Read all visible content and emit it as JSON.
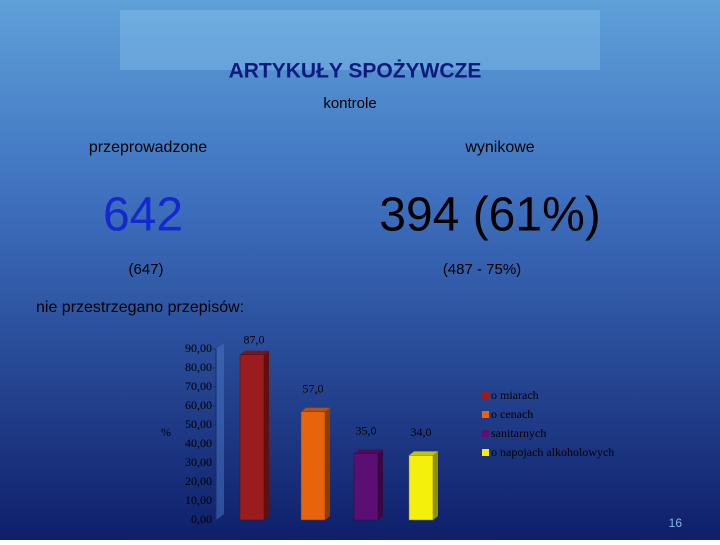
{
  "slide": {
    "title": "ARTYKUŁY SPOŻYWCZE",
    "subtitle": "kontrole",
    "left_label": "przeprowadzone",
    "right_label": "wynikowe",
    "left_value": "642",
    "right_value": "394 (61%)",
    "left_note": "(647)",
    "right_note": "(487 - 75%)",
    "chart_heading": "nie przestrzegano przepisów:",
    "page_number": "16"
  },
  "chart_data": {
    "type": "bar",
    "y_label": "%",
    "categories": [
      null
    ],
    "series": [
      {
        "name": "o miarach",
        "color": "#9b1c1c",
        "values": [
          87.0
        ],
        "value_labels": [
          "87,0"
        ]
      },
      {
        "name": "o cenach",
        "color": "#e8640c",
        "values": [
          57.0
        ],
        "value_labels": [
          "57,0"
        ]
      },
      {
        "name": "sanitarnych",
        "color": "#5c0f72",
        "values": [
          35.0
        ],
        "value_labels": [
          "35,0"
        ]
      },
      {
        "name": "o napojach alkoholowych",
        "color": "#f4f00c",
        "values": [
          34.0
        ],
        "value_labels": [
          "34,0"
        ]
      }
    ],
    "ylim": [
      0,
      90
    ],
    "yticks": [
      {
        "value": 0,
        "label": "0,00"
      },
      {
        "value": 10,
        "label": "10,00"
      },
      {
        "value": 20,
        "label": "20,00"
      },
      {
        "value": 30,
        "label": "30,00"
      },
      {
        "value": 40,
        "label": "40,00"
      },
      {
        "value": 50,
        "label": "50,00"
      },
      {
        "value": 60,
        "label": "60,00"
      },
      {
        "value": 70,
        "label": "70,00"
      },
      {
        "value": 80,
        "label": "80,00"
      },
      {
        "value": 90,
        "label": "90,00"
      }
    ],
    "grid": false,
    "legend": "right"
  }
}
